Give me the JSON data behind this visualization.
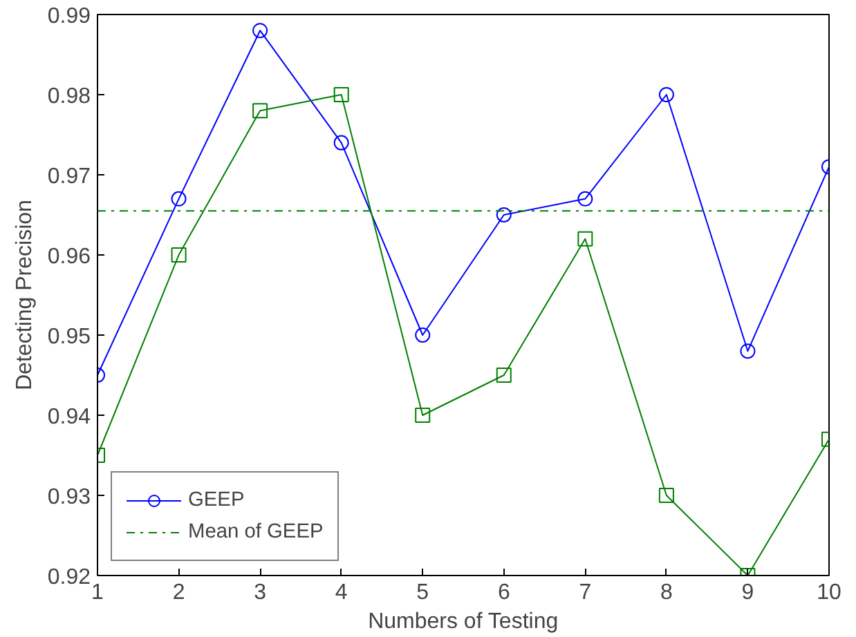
{
  "chart_data": {
    "type": "line",
    "xlabel": "Numbers of Testing",
    "ylabel": "Detecting Precision",
    "x": [
      1,
      2,
      3,
      4,
      5,
      6,
      7,
      8,
      9,
      10
    ],
    "series": [
      {
        "name": "GEEP",
        "color": "#0000ff",
        "marker": "circle",
        "values": [
          0.945,
          0.967,
          0.988,
          0.974,
          0.95,
          0.965,
          0.967,
          0.98,
          0.948,
          0.971
        ]
      },
      {
        "color": "#008000",
        "marker": "square",
        "values": [
          0.935,
          0.96,
          0.978,
          0.98,
          0.94,
          0.945,
          0.962,
          0.93,
          0.92,
          0.937
        ]
      }
    ],
    "ref_lines": [
      {
        "axis": "y",
        "value": 0.9655,
        "label": "Mean of GEEP",
        "color": "#008000",
        "line_style": "dashdot"
      }
    ],
    "xlim": [
      1,
      10
    ],
    "ylim": [
      0.92,
      0.99
    ],
    "xticks": [
      1,
      2,
      3,
      4,
      5,
      6,
      7,
      8,
      9,
      10
    ],
    "yticks": [
      0.92,
      0.93,
      0.94,
      0.95,
      0.96,
      0.97,
      0.98,
      0.99
    ],
    "grid": false,
    "legend": "bottom left"
  }
}
